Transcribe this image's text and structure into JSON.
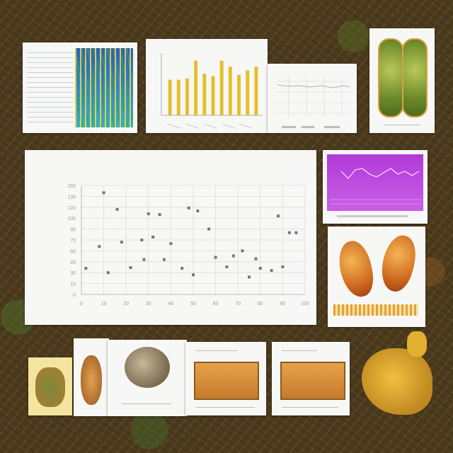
{
  "main_chart": {
    "title": "",
    "xlabel": "",
    "ylabel": "",
    "y_ticks": [
      "0",
      "15",
      "30",
      "45",
      "60",
      "75",
      "90",
      "105",
      "120",
      "135",
      "150"
    ],
    "x_ticks": [
      "0",
      "10",
      "20",
      "30",
      "40",
      "50",
      "60",
      "70",
      "80",
      "90",
      "100"
    ]
  },
  "chart_data": [
    {
      "type": "scatter",
      "title": "",
      "xlabel": "",
      "ylabel": "",
      "xlim": [
        0,
        100
      ],
      "ylim": [
        0,
        150
      ],
      "grid": true,
      "x": [
        2,
        8,
        10,
        12,
        16,
        18,
        22,
        27,
        28,
        30,
        32,
        35,
        37,
        40,
        45,
        48,
        50,
        52,
        57,
        60,
        65,
        68,
        72,
        75,
        78,
        80,
        85,
        88,
        90,
        93,
        96
      ],
      "y": [
        36,
        66,
        140,
        30,
        117,
        72,
        37,
        75,
        48,
        111,
        79,
        110,
        48,
        70,
        36,
        119,
        27,
        115,
        90,
        51,
        38,
        53,
        60,
        24,
        49,
        36,
        33,
        108,
        38,
        85,
        85
      ]
    },
    {
      "type": "bar",
      "values": [
        30,
        30,
        31,
        46,
        35,
        33,
        46,
        41,
        34,
        38,
        41
      ]
    }
  ],
  "decor": {
    "palette": [
      "#4a3a1e",
      "#f7f7f5",
      "#e3c02a",
      "#b23ad8",
      "#d06a20",
      "#2a5fc0"
    ]
  }
}
